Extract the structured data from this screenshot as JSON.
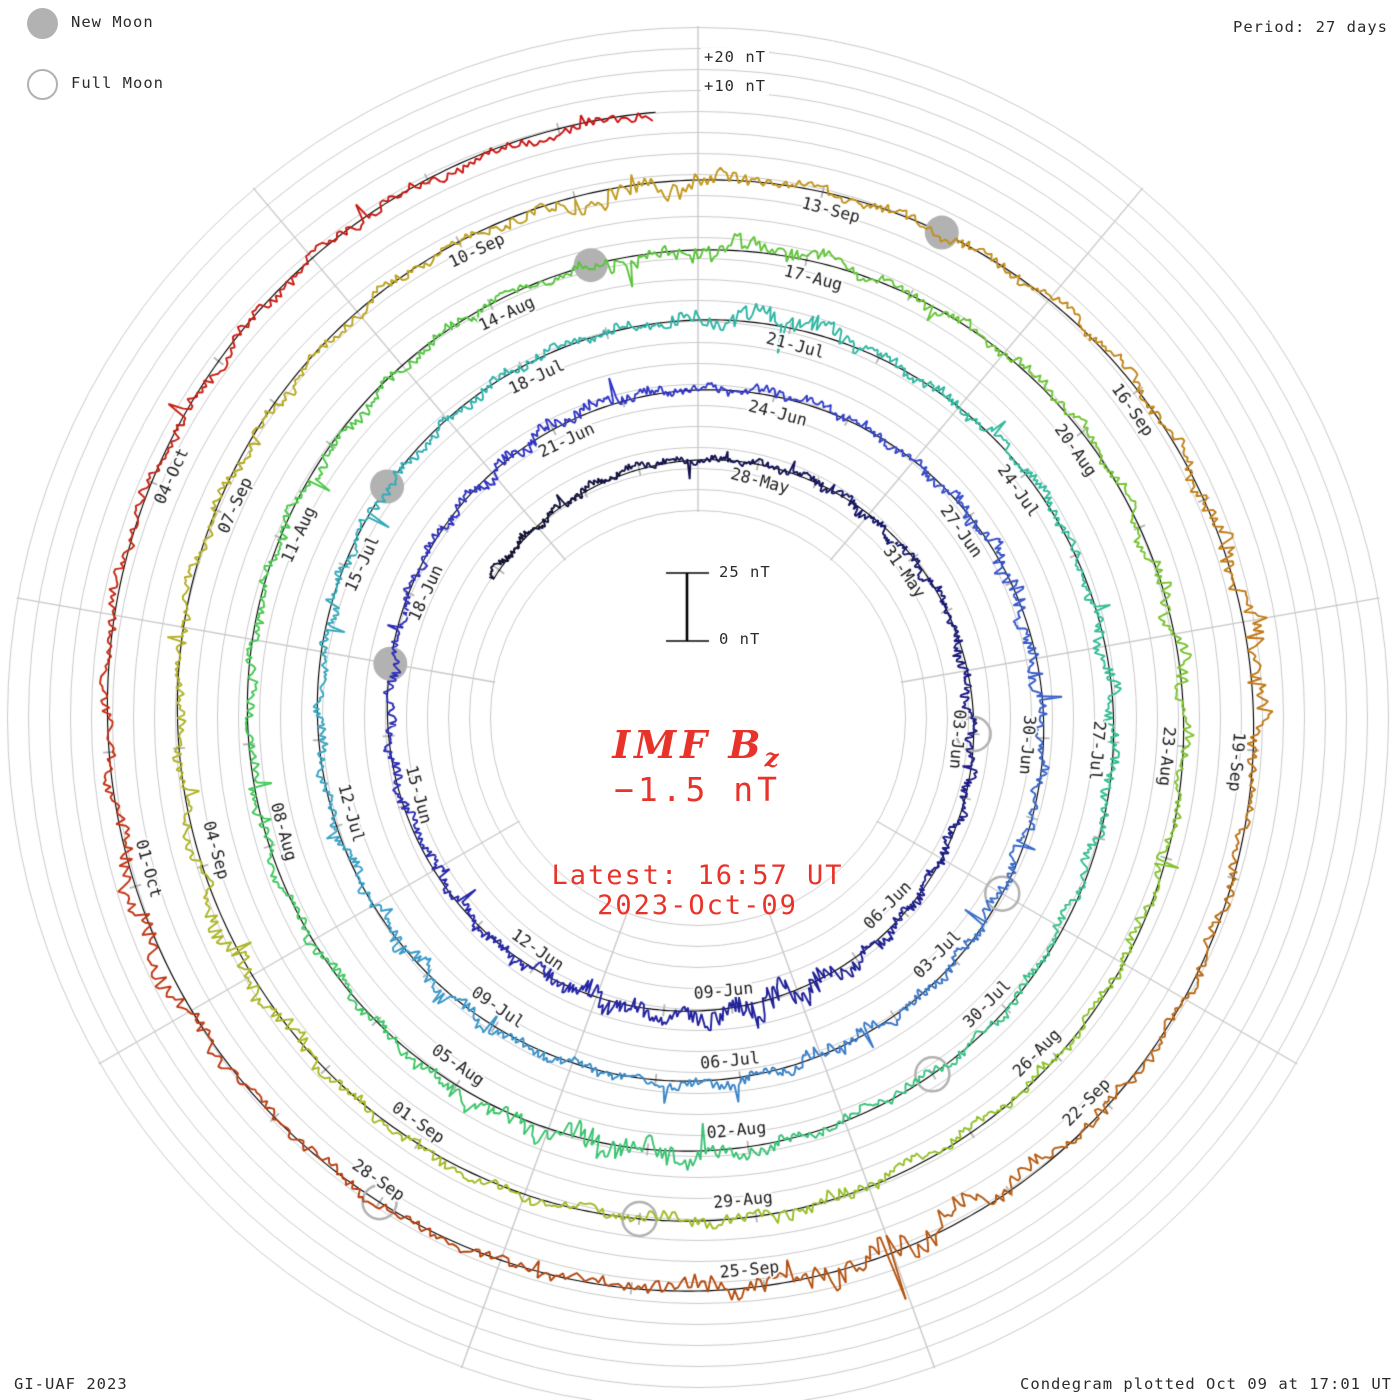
{
  "header": {
    "period_label": "Period: 27 days"
  },
  "legend": {
    "new_moon_label": "New Moon",
    "full_moon_label": "Full Moon",
    "moon_gray": "#b2b2b2"
  },
  "footer": {
    "left": "GI-UAF 2023",
    "right": "Condegram plotted Oct 09 at 17:01 UT"
  },
  "center_annotation": {
    "title_main": "IMF B",
    "title_sub": "z",
    "value": "−1.5 nT",
    "latest_line1": "Latest: 16:57 UT",
    "latest_line2": "2023-Oct-09",
    "color": "#e8332a"
  },
  "scale_bar": {
    "top_label": "25 nT",
    "bottom_label": "0 nT",
    "min_nT": 0,
    "max_nT": 25
  },
  "ring_scale_labels": [
    "+20 nT",
    "+10 nT"
  ],
  "chart_data": {
    "type": "line",
    "variant": "condegram: polar spiral time-series, one revolution = 27 days, time increases clockwise and outward",
    "title": "IMF Bz",
    "units": "nT",
    "period_days": 27,
    "latest_value_nT": -1.5,
    "latest_time": "16:57 UT 2023-Oct-09",
    "plotted": "Oct 09 at 17:01 UT",
    "time_span": {
      "start_day": -4.2,
      "end_day": 134.7,
      "day0": "28-May-2023",
      "end": "09-Oct-2023 16:57 UT"
    },
    "grid": {
      "gray_circle_spacing_nT": 10,
      "spoke_every_days": 3,
      "day_tick_every_days": 1,
      "grid_color": "#c9c9c9",
      "baseline_color": "#000000"
    },
    "radial_scale": {
      "scale_bar_nT": [
        0,
        25
      ],
      "outer_gridline_labels": [
        "+10 nT",
        "+20 nT"
      ]
    },
    "date_labels": [
      {
        "text": "28-May",
        "day": 0
      },
      {
        "text": "31-May",
        "day": 3
      },
      {
        "text": "03-Jun",
        "day": 6
      },
      {
        "text": "06-Jun",
        "day": 9
      },
      {
        "text": "09-Jun",
        "day": 12
      },
      {
        "text": "12-Jun",
        "day": 15
      },
      {
        "text": "15-Jun",
        "day": 18
      },
      {
        "text": "18-Jun",
        "day": 21
      },
      {
        "text": "21-Jun",
        "day": 24
      },
      {
        "text": "24-Jun",
        "day": 27
      },
      {
        "text": "27-Jun",
        "day": 30
      },
      {
        "text": "30-Jun",
        "day": 33
      },
      {
        "text": "03-Jul",
        "day": 36
      },
      {
        "text": "06-Jul",
        "day": 39
      },
      {
        "text": "09-Jul",
        "day": 42
      },
      {
        "text": "12-Jul",
        "day": 45
      },
      {
        "text": "15-Jul",
        "day": 48
      },
      {
        "text": "18-Jul",
        "day": 51
      },
      {
        "text": "21-Jul",
        "day": 54
      },
      {
        "text": "24-Jul",
        "day": 57
      },
      {
        "text": "27-Jul",
        "day": 60
      },
      {
        "text": "30-Jul",
        "day": 63
      },
      {
        "text": "02-Aug",
        "day": 66
      },
      {
        "text": "05-Aug",
        "day": 69
      },
      {
        "text": "08-Aug",
        "day": 72
      },
      {
        "text": "11-Aug",
        "day": 75
      },
      {
        "text": "14-Aug",
        "day": 78
      },
      {
        "text": "17-Aug",
        "day": 81
      },
      {
        "text": "20-Aug",
        "day": 84
      },
      {
        "text": "23-Aug",
        "day": 87
      },
      {
        "text": "26-Aug",
        "day": 90
      },
      {
        "text": "29-Aug",
        "day": 93
      },
      {
        "text": "01-Sep",
        "day": 96
      },
      {
        "text": "04-Sep",
        "day": 99
      },
      {
        "text": "07-Sep",
        "day": 102
      },
      {
        "text": "10-Sep",
        "day": 105
      },
      {
        "text": "13-Sep",
        "day": 108
      },
      {
        "text": "16-Sep",
        "day": 111
      },
      {
        "text": "19-Sep",
        "day": 114
      },
      {
        "text": "22-Sep",
        "day": 117
      },
      {
        "text": "25-Sep",
        "day": 120
      },
      {
        "text": "28-Sep",
        "day": 123
      },
      {
        "text": "01-Oct",
        "day": 126
      },
      {
        "text": "04-Oct",
        "day": 129
      }
    ],
    "revolutions": [
      {
        "top_label": "28-May",
        "approx_color": "#14145c"
      },
      {
        "top_label": "24-Jun",
        "approx_color": "#3338cc"
      },
      {
        "top_label": "21-Jul",
        "approx_color": "#2fb3ab"
      },
      {
        "top_label": "17-Aug",
        "approx_color": "#5fc53a"
      },
      {
        "top_label": "13-Sep",
        "approx_color": "#c3981d"
      },
      {
        "top_label": "09-Oct (end)",
        "approx_color": "#cc1111"
      }
    ],
    "color_stops": [
      {
        "day": -4,
        "color": "#101030"
      },
      {
        "day": 6,
        "color": "#191980"
      },
      {
        "day": 16,
        "color": "#2526a8"
      },
      {
        "day": 27,
        "color": "#3338cc"
      },
      {
        "day": 36,
        "color": "#3a6fc8"
      },
      {
        "day": 45,
        "color": "#3aa0c8"
      },
      {
        "day": 52,
        "color": "#2fb3ab"
      },
      {
        "day": 60,
        "color": "#34bd96"
      },
      {
        "day": 67,
        "color": "#3cc377"
      },
      {
        "day": 73,
        "color": "#3fc95b"
      },
      {
        "day": 79,
        "color": "#55c63e"
      },
      {
        "day": 85,
        "color": "#72c434"
      },
      {
        "day": 91,
        "color": "#8ec22b"
      },
      {
        "day": 97,
        "color": "#a8ba26"
      },
      {
        "day": 103,
        "color": "#b5ad24"
      },
      {
        "day": 108,
        "color": "#c3981d"
      },
      {
        "day": 114,
        "color": "#c07a16"
      },
      {
        "day": 119,
        "color": "#b55b13"
      },
      {
        "day": 123,
        "color": "#b2430f"
      },
      {
        "day": 127,
        "color": "#c23517"
      },
      {
        "day": 131,
        "color": "#c91d12"
      },
      {
        "day": 135,
        "color": "#cc1111"
      }
    ],
    "moon_events": {
      "new_moons": [
        {
          "date": "18-Jun",
          "day": 21
        },
        {
          "date": "17-Jul",
          "day": 50
        },
        {
          "date": "16-Aug",
          "day": 80
        },
        {
          "date": "15-Sep",
          "day": 110
        }
      ],
      "full_moons": [
        {
          "date": "04-Jun",
          "day": 7
        },
        {
          "date": "03-Jul",
          "day": 36
        },
        {
          "date": "01-Aug",
          "day": 65
        },
        {
          "date": "31-Aug",
          "day": 95
        },
        {
          "date": "29-Sep",
          "day": 124
        }
      ]
    },
    "disturbed_intervals": [
      {
        "day": 11,
        "len": 2.5,
        "factor": 2.8
      },
      {
        "day": 14,
        "len": 2.0,
        "factor": 2.2
      },
      {
        "day": 24,
        "len": 1.5,
        "factor": 1.6
      },
      {
        "day": 31,
        "len": 2.0,
        "factor": 1.7
      },
      {
        "day": 38,
        "len": 1.5,
        "factor": 1.6
      },
      {
        "day": 43,
        "len": 2.0,
        "factor": 1.9
      },
      {
        "day": 54,
        "len": 1.5,
        "factor": 2.1
      },
      {
        "day": 60,
        "len": 1.5,
        "factor": 1.6
      },
      {
        "day": 67,
        "len": 3.0,
        "factor": 2.7
      },
      {
        "day": 80,
        "len": 2.0,
        "factor": 2.3
      },
      {
        "day": 86,
        "len": 1.5,
        "factor": 1.7
      },
      {
        "day": 93,
        "len": 1.5,
        "factor": 1.6
      },
      {
        "day": 98,
        "len": 2.0,
        "factor": 1.8
      },
      {
        "day": 107,
        "len": 1.2,
        "factor": 2.5
      },
      {
        "day": 113,
        "len": 2.0,
        "factor": 2.5
      },
      {
        "day": 119,
        "len": 2.5,
        "factor": 3.4
      },
      {
        "day": 126,
        "len": 1.5,
        "factor": 2.0
      }
    ]
  }
}
